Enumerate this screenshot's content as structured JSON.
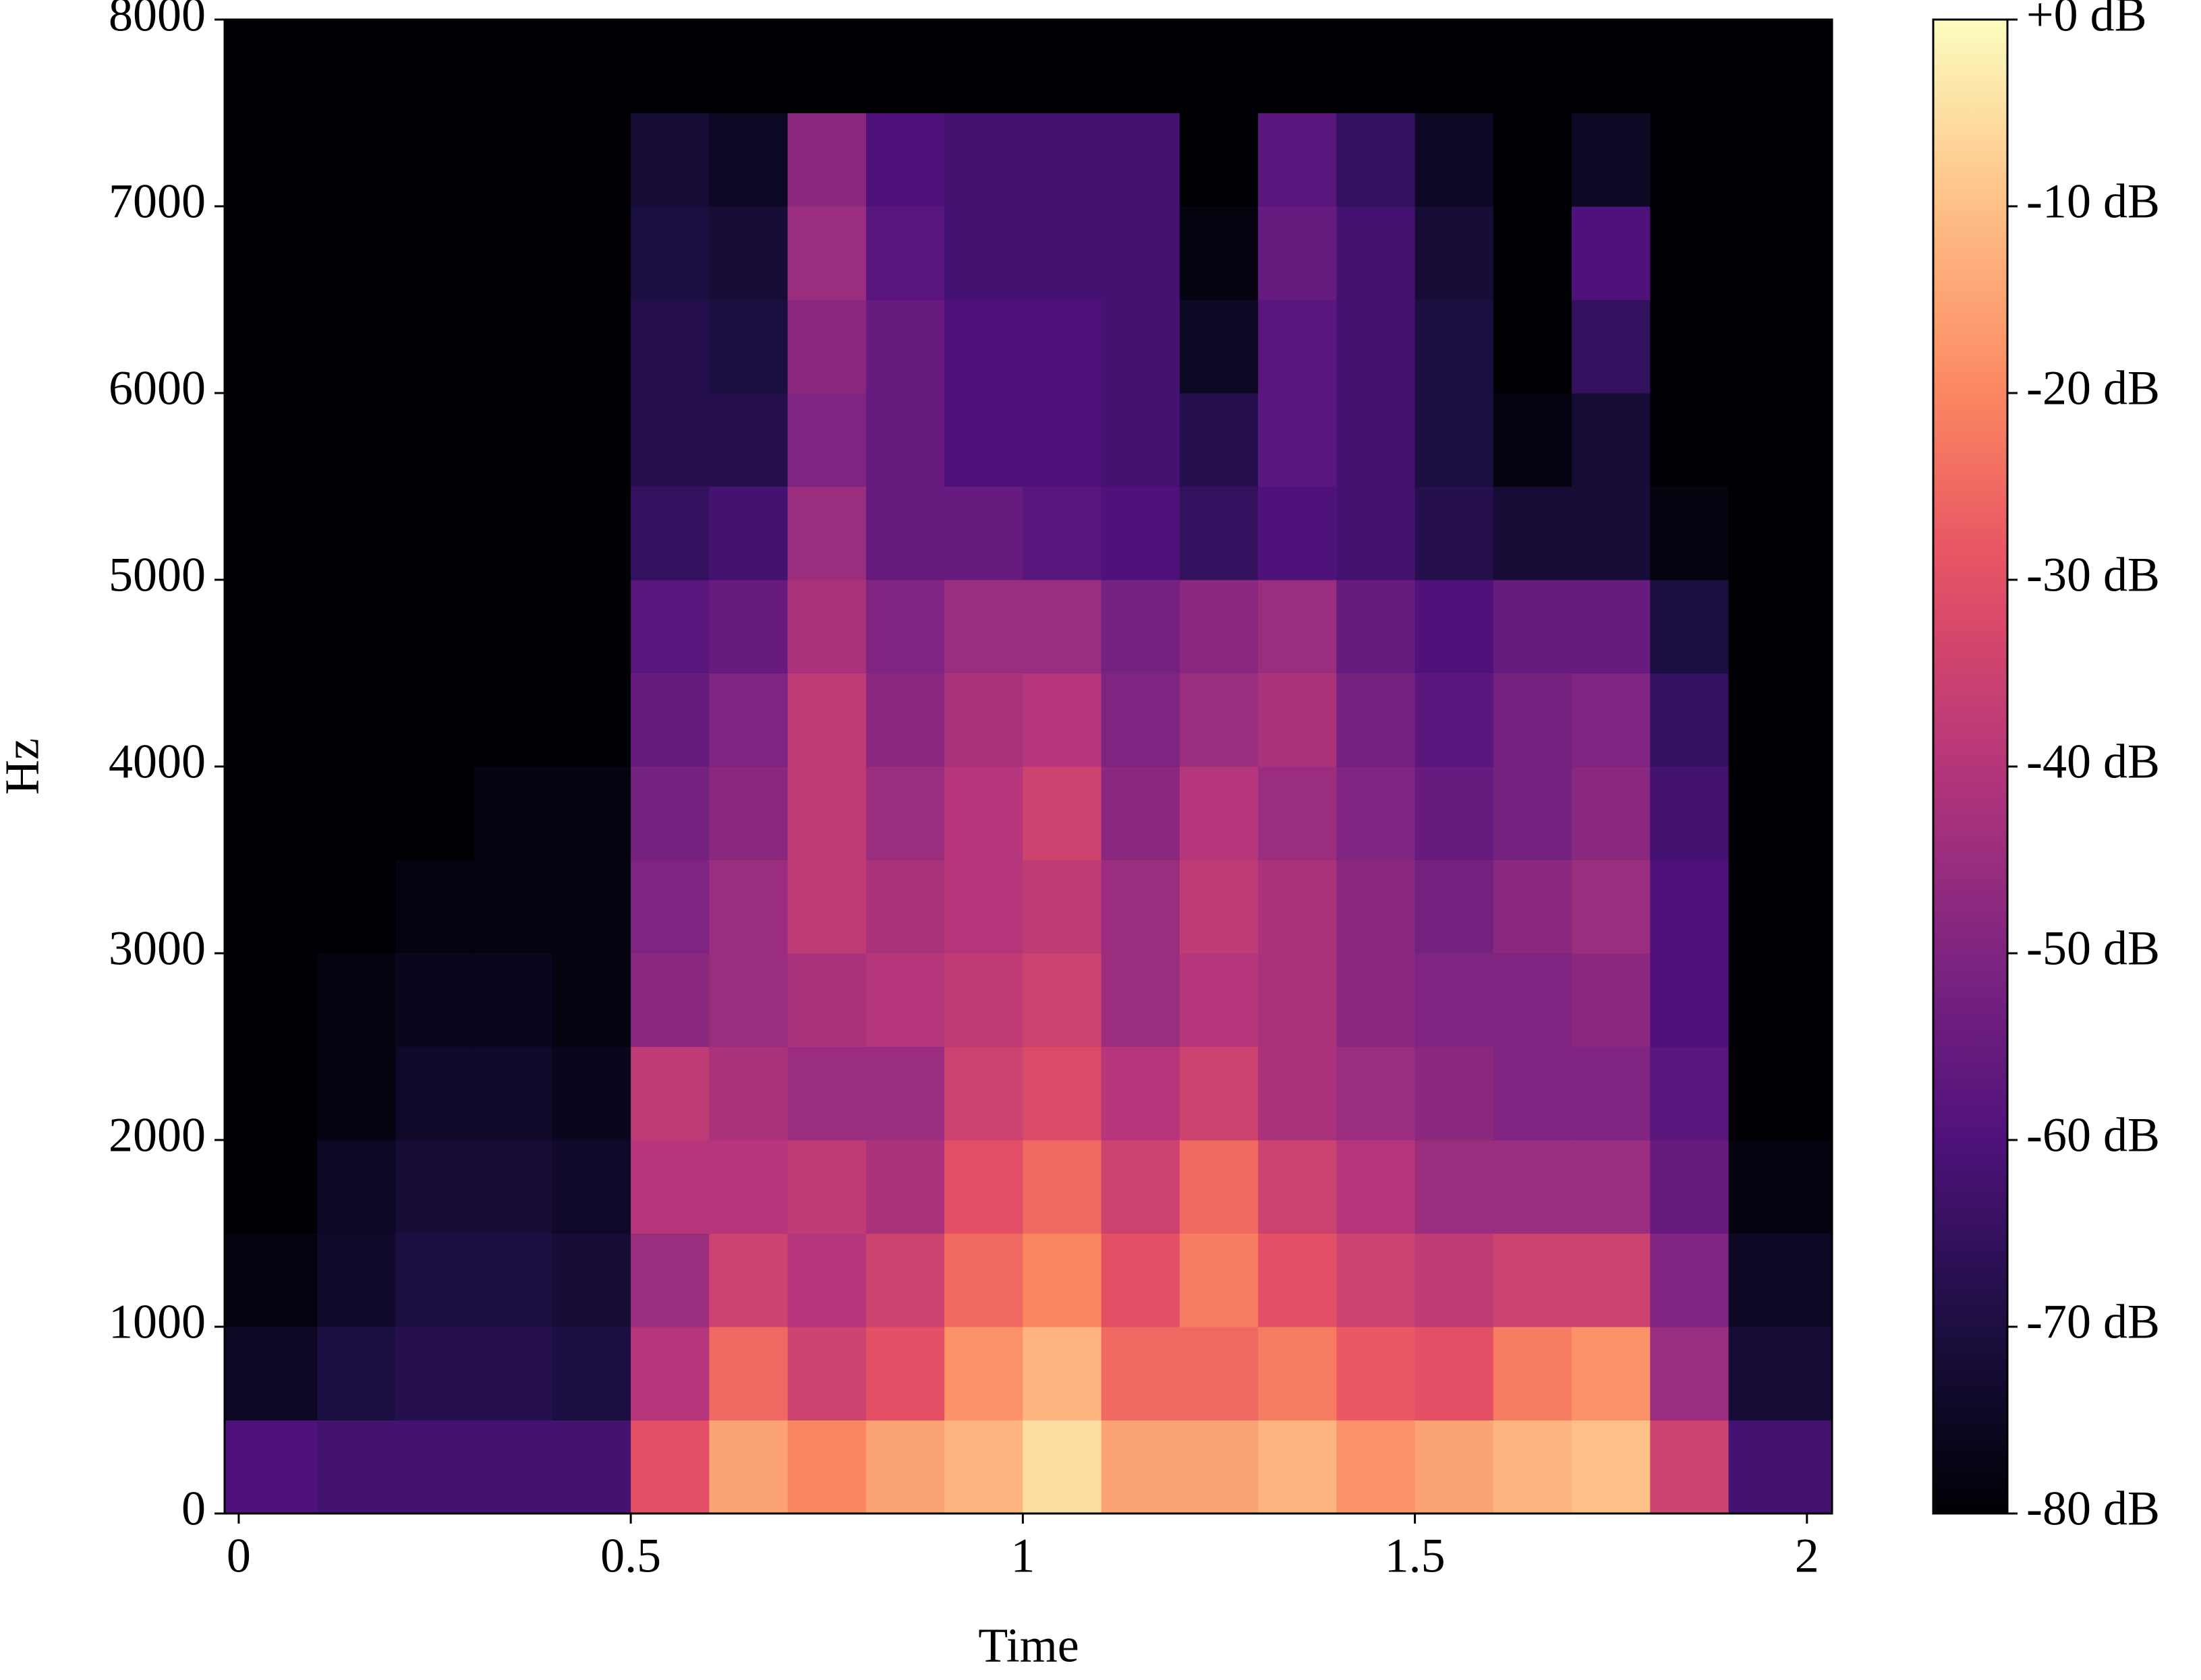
{
  "chart_data": {
    "type": "heatmap",
    "xlabel": "Time",
    "ylabel": "Hz",
    "x": [
      0.05,
      0.15,
      0.25,
      0.35,
      0.45,
      0.55,
      0.65,
      0.75,
      0.85,
      0.95,
      1.05,
      1.15,
      1.25,
      1.35,
      1.45,
      1.55,
      1.65,
      1.75,
      1.85,
      1.95
    ],
    "y": [
      250,
      750,
      1250,
      1750,
      2250,
      2750,
      3250,
      3750,
      4250,
      4750,
      5250,
      5750,
      6250,
      6750,
      7250,
      7750
    ],
    "values": [
      [
        -60,
        -62,
        -62,
        -62,
        -62,
        -30,
        -15,
        -20,
        -15,
        -12,
        -5,
        -15,
        -15,
        -12,
        -18,
        -15,
        -12,
        -10,
        -35,
        -62
      ],
      [
        -75,
        -70,
        -68,
        -68,
        -70,
        -40,
        -25,
        -35,
        -30,
        -18,
        -12,
        -25,
        -25,
        -22,
        -28,
        -30,
        -22,
        -18,
        -45,
        -72
      ],
      [
        -78,
        -74,
        -70,
        -70,
        -72,
        -45,
        -35,
        -40,
        -35,
        -25,
        -20,
        -30,
        -22,
        -30,
        -35,
        -38,
        -35,
        -35,
        -50,
        -75
      ],
      [
        -80,
        -75,
        -72,
        -72,
        -74,
        -40,
        -40,
        -38,
        -42,
        -30,
        -25,
        -35,
        -25,
        -35,
        -40,
        -45,
        -45,
        -45,
        -55,
        -78
      ],
      [
        -80,
        -78,
        -74,
        -74,
        -76,
        -38,
        -42,
        -45,
        -45,
        -35,
        -32,
        -40,
        -35,
        -42,
        -45,
        -48,
        -50,
        -50,
        -58,
        -80
      ],
      [
        -80,
        -78,
        -76,
        -76,
        -78,
        -48,
        -45,
        -42,
        -40,
        -38,
        -35,
        -45,
        -40,
        -42,
        -48,
        -50,
        -50,
        -48,
        -60,
        -80
      ],
      [
        -80,
        -80,
        -78,
        -78,
        -78,
        -50,
        -45,
        -38,
        -42,
        -40,
        -38,
        -45,
        -38,
        -42,
        -48,
        -52,
        -48,
        -45,
        -60,
        -80
      ],
      [
        -80,
        -80,
        -80,
        -78,
        -78,
        -52,
        -48,
        -38,
        -45,
        -40,
        -35,
        -48,
        -40,
        -45,
        -50,
        -55,
        -52,
        -48,
        -62,
        -80
      ],
      [
        -80,
        -80,
        -80,
        -80,
        -80,
        -55,
        -50,
        -38,
        -48,
        -42,
        -40,
        -50,
        -45,
        -42,
        -52,
        -58,
        -52,
        -50,
        -65,
        -80
      ],
      [
        -80,
        -80,
        -80,
        -80,
        -80,
        -58,
        -55,
        -42,
        -50,
        -45,
        -45,
        -52,
        -48,
        -45,
        -55,
        -60,
        -55,
        -55,
        -70,
        -80
      ],
      [
        -80,
        -80,
        -80,
        -80,
        -80,
        -65,
        -62,
        -45,
        -55,
        -55,
        -58,
        -60,
        -65,
        -60,
        -62,
        -68,
        -72,
        -72,
        -78,
        -80
      ],
      [
        -80,
        -80,
        -80,
        -80,
        -80,
        -68,
        -68,
        -50,
        -55,
        -60,
        -60,
        -62,
        -68,
        -58,
        -62,
        -70,
        -78,
        -72,
        -80,
        -80
      ],
      [
        -80,
        -80,
        -80,
        -80,
        -80,
        -68,
        -70,
        -48,
        -55,
        -60,
        -60,
        -62,
        -75,
        -58,
        -62,
        -70,
        -80,
        -65,
        -80,
        -80
      ],
      [
        -80,
        -80,
        -80,
        -80,
        -80,
        -70,
        -72,
        -45,
        -58,
        -62,
        -62,
        -62,
        -78,
        -55,
        -62,
        -72,
        -80,
        -60,
        -80,
        -80
      ],
      [
        -80,
        -80,
        -80,
        -80,
        -80,
        -72,
        -75,
        -48,
        -60,
        -62,
        -62,
        -62,
        -80,
        -58,
        -65,
        -75,
        -80,
        -75,
        -80,
        -80
      ],
      [
        -80,
        -80,
        -80,
        -80,
        -80,
        -80,
        -80,
        -80,
        -80,
        -80,
        -80,
        -80,
        -80,
        -80,
        -80,
        -80,
        -80,
        -80,
        -80,
        -80
      ]
    ],
    "xlim": [
      -0.018,
      2.032
    ],
    "xticks": [
      0,
      0.5,
      1,
      1.5,
      2
    ],
    "ylim": [
      0,
      8000
    ],
    "yticks": [
      0,
      1000,
      2000,
      3000,
      4000,
      5000,
      6000,
      7000,
      8000
    ],
    "colormap": "magma",
    "zlim": [
      -80,
      0
    ],
    "cticks": [
      {
        "value": 0,
        "label": "+0 dB"
      },
      {
        "value": -10,
        "label": "-10 dB"
      },
      {
        "value": -20,
        "label": "-20 dB"
      },
      {
        "value": -30,
        "label": "-30 dB"
      },
      {
        "value": -40,
        "label": "-40 dB"
      },
      {
        "value": -50,
        "label": "-50 dB"
      },
      {
        "value": -60,
        "label": "-60 dB"
      },
      {
        "value": -70,
        "label": "-70 dB"
      },
      {
        "value": -80,
        "label": "-80 dB"
      }
    ]
  }
}
